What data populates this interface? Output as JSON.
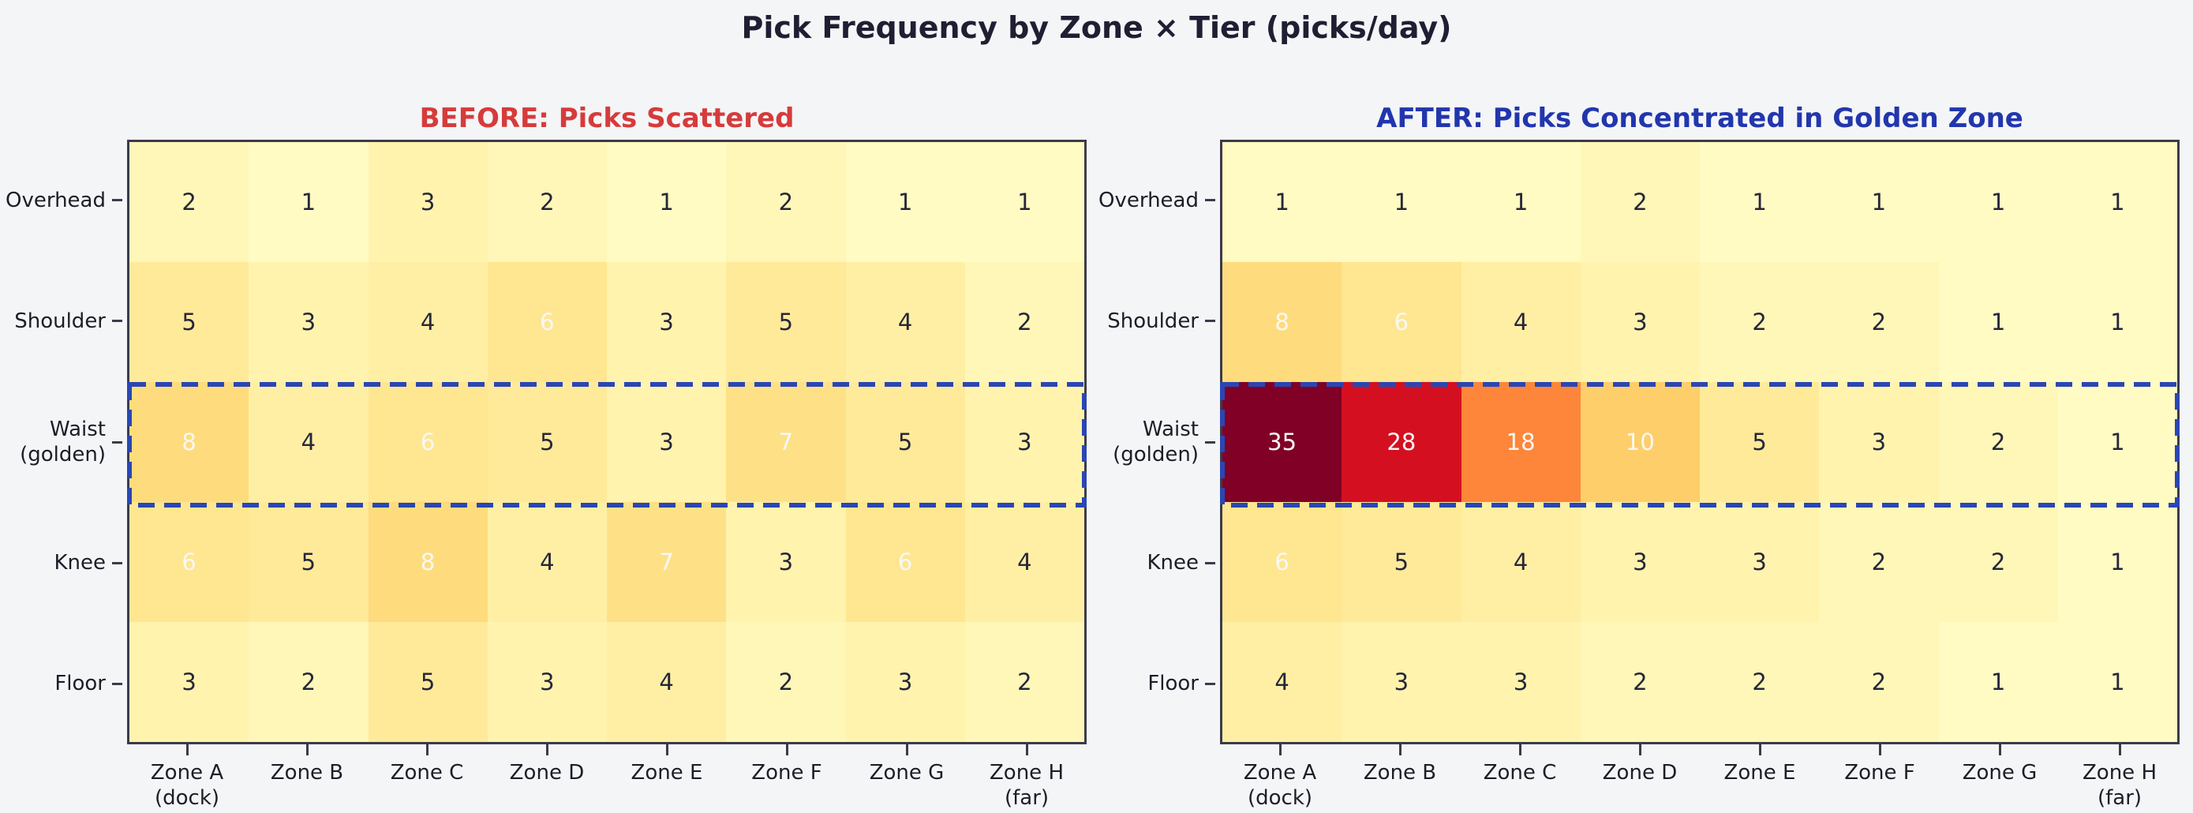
{
  "figure": {
    "title": "Pick Frequency by Zone × Tier (picks/day)"
  },
  "style": {
    "background": "#f4f5f7",
    "figure_title_color": "#1f1f33",
    "axis_spine_color": "#3b3b4b",
    "tick_color": "#3b3b4b",
    "tick_label_color": "#1d1d28",
    "annotation_dark": "#26263a",
    "annotation_light": "#f8f8f5",
    "highlight_color": "#2a46b4",
    "colormap_name": "YlOrRd",
    "colormap_stops": [
      [
        0.0,
        "#ffffcc"
      ],
      [
        0.125,
        "#ffeda0"
      ],
      [
        0.25,
        "#fed976"
      ],
      [
        0.375,
        "#feb24c"
      ],
      [
        0.5,
        "#fd8d3c"
      ],
      [
        0.625,
        "#fc4e2a"
      ],
      [
        0.75,
        "#e31a1c"
      ],
      [
        0.875,
        "#bd0026"
      ],
      [
        1.0,
        "#800026"
      ]
    ],
    "white_text_min_value": 6
  },
  "scale": {
    "vmin": 0,
    "vmax": 35
  },
  "chart_data": [
    {
      "type": "heatmap",
      "title": "BEFORE: Picks Scattered",
      "title_color": "#d63b3b",
      "rows": [
        "Overhead",
        "Shoulder",
        "Waist\n(golden)",
        "Knee",
        "Floor"
      ],
      "cols": [
        "Zone A\n(dock)",
        "Zone B",
        "Zone C",
        "Zone D",
        "Zone E",
        "Zone F",
        "Zone G",
        "Zone H\n(far)"
      ],
      "values": [
        [
          2,
          1,
          3,
          2,
          1,
          2,
          1,
          1
        ],
        [
          5,
          3,
          4,
          6,
          3,
          5,
          4,
          2
        ],
        [
          8,
          4,
          6,
          5,
          3,
          7,
          5,
          3
        ],
        [
          6,
          5,
          8,
          4,
          7,
          3,
          6,
          4
        ],
        [
          3,
          2,
          5,
          3,
          4,
          2,
          3,
          2
        ]
      ],
      "highlight_row_index": 2,
      "highlight_row_label": "Waist (golden)"
    },
    {
      "type": "heatmap",
      "title": "AFTER: Picks Concentrated in Golden Zone",
      "title_color": "#2236ad",
      "rows": [
        "Overhead",
        "Shoulder",
        "Waist\n(golden)",
        "Knee",
        "Floor"
      ],
      "cols": [
        "Zone A\n(dock)",
        "Zone B",
        "Zone C",
        "Zone D",
        "Zone E",
        "Zone F",
        "Zone G",
        "Zone H\n(far)"
      ],
      "values": [
        [
          1,
          1,
          1,
          2,
          1,
          1,
          1,
          1
        ],
        [
          8,
          6,
          4,
          3,
          2,
          2,
          1,
          1
        ],
        [
          35,
          28,
          18,
          10,
          5,
          3,
          2,
          1
        ],
        [
          6,
          5,
          4,
          3,
          3,
          2,
          2,
          1
        ],
        [
          4,
          3,
          3,
          2,
          2,
          2,
          1,
          1
        ]
      ],
      "highlight_row_index": 2,
      "highlight_row_label": "Waist (golden)"
    }
  ]
}
